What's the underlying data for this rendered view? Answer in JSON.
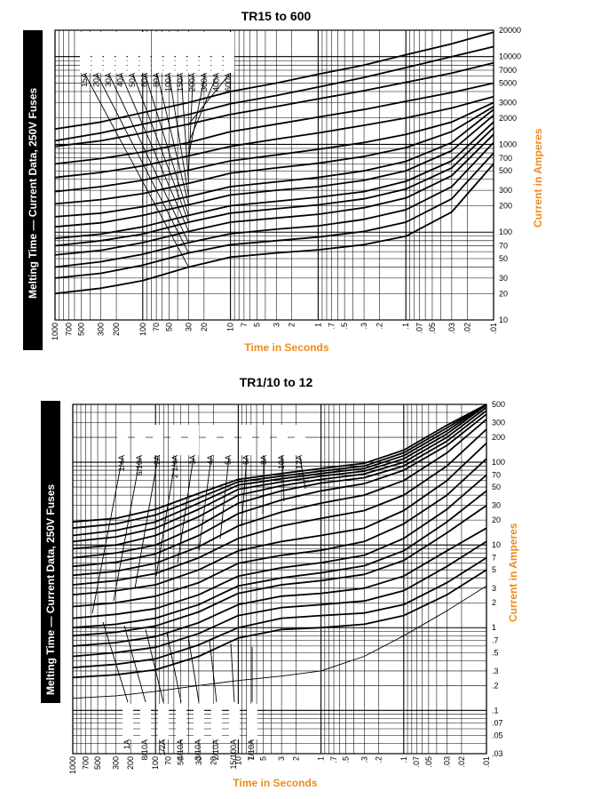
{
  "colors": {
    "axis_label": "#f08a1c",
    "side_band": "#000000",
    "curve": "#000000",
    "grid": "#000000"
  },
  "chart_data": [
    {
      "type": "line",
      "title": "TR15 to 600",
      "side_label": "Melting Time — Current Data, 250V Fuses",
      "xlabel": "Time in Seconds",
      "ylabel": "Current in Amperes",
      "x_scale": "log",
      "x_reversed": true,
      "xlim": [
        1000,
        0.01
      ],
      "y_scale": "log",
      "ylim": [
        10,
        20000
      ],
      "grid": true,
      "x_ticks": [
        "1000",
        "700",
        "500",
        "300",
        "200",
        "100",
        "70",
        "50",
        "30",
        "20",
        "10",
        "7",
        "5",
        "3",
        "2",
        "1",
        ".7",
        ".5",
        ".3",
        ".2",
        ".1",
        ".07",
        ".05",
        ".03",
        ".02",
        ".01"
      ],
      "y_ticks": [
        "20000",
        "10000",
        "7000",
        "5000",
        "3000",
        "2000",
        "1000",
        "700",
        "500",
        "300",
        "200",
        "100",
        "70",
        "50",
        "30",
        "20",
        "10"
      ],
      "series": [
        {
          "name": "15A",
          "x": [
            1000,
            300,
            100,
            30,
            10,
            3,
            1,
            0.3,
            0.1,
            0.03,
            0.01
          ],
          "y": [
            20,
            23,
            28,
            40,
            52,
            58,
            63,
            72,
            90,
            170,
            600
          ]
        },
        {
          "name": "20A",
          "x": [
            1000,
            300,
            100,
            30,
            10,
            3,
            1,
            0.3,
            0.1,
            0.03,
            0.01
          ],
          "y": [
            30,
            34,
            42,
            58,
            72,
            80,
            88,
            102,
            130,
            240,
            800
          ]
        },
        {
          "name": "30A",
          "x": [
            1000,
            300,
            100,
            30,
            10,
            3,
            1,
            0.3,
            0.1,
            0.03,
            0.01
          ],
          "y": [
            40,
            46,
            56,
            76,
            96,
            108,
            118,
            140,
            180,
            330,
            1050
          ]
        },
        {
          "name": "40A",
          "x": [
            1000,
            300,
            100,
            30,
            10,
            3,
            1,
            0.3,
            0.1,
            0.03,
            0.01
          ],
          "y": [
            55,
            62,
            76,
            102,
            130,
            145,
            160,
            190,
            245,
            440,
            1300
          ]
        },
        {
          "name": "50A",
          "x": [
            1000,
            300,
            100,
            30,
            10,
            3,
            1,
            0.3,
            0.1,
            0.03,
            0.01
          ],
          "y": [
            70,
            80,
            95,
            130,
            165,
            185,
            205,
            240,
            310,
            540,
            1550
          ]
        },
        {
          "name": "60A",
          "x": [
            1000,
            300,
            100,
            30,
            10,
            3,
            1,
            0.3,
            0.1,
            0.03,
            0.01
          ],
          "y": [
            85,
            95,
            115,
            155,
            200,
            225,
            250,
            290,
            380,
            650,
            1800
          ]
        },
        {
          "name": "80A",
          "x": [
            1000,
            300,
            100,
            30,
            10,
            3,
            1,
            0.3,
            0.1,
            0.03,
            0.01
          ],
          "y": [
            115,
            128,
            155,
            205,
            265,
            300,
            330,
            390,
            500,
            850,
            2150
          ]
        },
        {
          "name": "100A",
          "x": [
            1000,
            300,
            100,
            30,
            10,
            3,
            1,
            0.3,
            0.1,
            0.03,
            0.01
          ],
          "y": [
            150,
            165,
            195,
            255,
            330,
            375,
            420,
            500,
            640,
            1050,
            2500
          ]
        },
        {
          "name": "150A",
          "x": [
            1000,
            300,
            100,
            30,
            10,
            3,
            1,
            0.3,
            0.1,
            0.03,
            0.01
          ],
          "y": [
            210,
            235,
            275,
            360,
            470,
            540,
            610,
            730,
            920,
            1400,
            2700
          ]
        },
        {
          "name": "200A",
          "x": [
            1000,
            300,
            100,
            30,
            10,
            3,
            1,
            0.3,
            0.1,
            0.03,
            0.01
          ],
          "y": [
            290,
            330,
            390,
            510,
            650,
            760,
            880,
            1050,
            1300,
            1800,
            3000
          ]
        },
        {
          "name": "300A",
          "x": [
            1000,
            300,
            100,
            30,
            10,
            3,
            1,
            0.3,
            0.1,
            0.03,
            0.01
          ],
          "y": [
            420,
            480,
            570,
            740,
            950,
            1150,
            1350,
            1650,
            2000,
            2600,
            3500
          ]
        },
        {
          "name": "400A",
          "x": [
            1000,
            300,
            100,
            30,
            10,
            3,
            1,
            0.3,
            0.1,
            0.03,
            0.01
          ],
          "y": [
            600,
            690,
            820,
            1050,
            1400,
            1700,
            2050,
            2500,
            3100,
            3900,
            5000
          ]
        },
        {
          "name": "600A",
          "x": [
            1000,
            300,
            100,
            30,
            10,
            3,
            1,
            0.3,
            0.1,
            0.03,
            0.01
          ],
          "y": [
            950,
            1100,
            1350,
            1700,
            2200,
            2700,
            3300,
            4100,
            5100,
            6500,
            8500
          ]
        },
        {
          "name": "",
          "x": [
            1000,
            300,
            100,
            30,
            10,
            3,
            1,
            0.3,
            0.1,
            0.03,
            0.01
          ],
          "y": [
            1100,
            1350,
            1700,
            2200,
            2900,
            3600,
            4500,
            5800,
            7500,
            10000,
            13000
          ]
        },
        {
          "name": "",
          "x": [
            1000,
            300,
            100,
            30,
            10,
            3,
            1,
            0.3,
            0.1,
            0.03,
            0.01
          ],
          "y": [
            1500,
            1800,
            2300,
            3000,
            4000,
            5000,
            6300,
            8000,
            10500,
            14000,
            19000
          ]
        }
      ]
    },
    {
      "type": "line",
      "title": "TR1/10 to 12",
      "side_label": "Melting Time — Current Data, 250V Fuses",
      "xlabel": "Time in Seconds",
      "ylabel": "Current in Amperes",
      "x_scale": "log",
      "x_reversed": true,
      "xlim": [
        1000,
        0.01
      ],
      "y_scale": "log",
      "ylim": [
        0.03,
        500
      ],
      "grid": true,
      "x_ticks": [
        "1000",
        "700",
        "500",
        "300",
        "200",
        "100",
        "70",
        "50",
        "30",
        "20",
        "10",
        "7",
        "5",
        "3",
        "2",
        "1",
        ".7",
        ".5",
        ".3",
        ".2",
        ".1",
        ".07",
        ".05",
        ".03",
        ".02",
        ".01"
      ],
      "y_ticks": [
        "500",
        "300",
        "200",
        "100",
        "70",
        "50",
        "30",
        "20",
        "10",
        "7",
        "5",
        "3",
        "2",
        "1",
        ".7",
        ".5",
        ".3",
        ".2",
        ".1",
        ".07",
        ".05",
        ".03"
      ],
      "top_ratings": [
        "1/4A",
        "6/10A",
        "2A",
        "2 1/4A",
        "3A",
        "4A",
        "5A",
        "6A",
        "8A",
        "10A",
        "12A"
      ],
      "bottom_ratings": [
        "1A",
        "8/10A",
        "1/2A",
        "4/10A",
        "3/10A",
        "2/10A",
        "15/100A",
        "1/10A"
      ],
      "series": [
        {
          "name": "1/10A",
          "x": [
            1000,
            300,
            100,
            30,
            10,
            3,
            1,
            0.3,
            0.1,
            0.03,
            0.01
          ],
          "y": [
            0.14,
            0.15,
            0.17,
            0.2,
            0.23,
            0.26,
            0.3,
            0.45,
            0.8,
            1.6,
            3.2
          ]
        },
        {
          "name": "15/100A",
          "x": [
            1000,
            300,
            100,
            30,
            10,
            3,
            1,
            0.3,
            0.1,
            0.03,
            0.01
          ],
          "y": [
            0.25,
            0.27,
            0.31,
            0.45,
            0.75,
            0.95,
            1.0,
            1.1,
            1.4,
            2.5,
            5
          ]
        },
        {
          "name": "2/10A",
          "x": [
            1000,
            300,
            100,
            30,
            10,
            3,
            1,
            0.3,
            0.1,
            0.03,
            0.01
          ],
          "y": [
            0.33,
            0.36,
            0.42,
            0.62,
            1.0,
            1.3,
            1.4,
            1.5,
            1.9,
            3.5,
            7
          ]
        },
        {
          "name": "3/10A",
          "x": [
            1000,
            300,
            100,
            30,
            10,
            3,
            1,
            0.3,
            0.1,
            0.03,
            0.01
          ],
          "y": [
            0.45,
            0.5,
            0.58,
            0.85,
            1.4,
            1.75,
            1.9,
            2.1,
            2.8,
            5.5,
            11
          ]
        },
        {
          "name": "4/10A",
          "x": [
            1000,
            300,
            100,
            30,
            10,
            3,
            1,
            0.3,
            0.1,
            0.03,
            0.01
          ],
          "y": [
            0.6,
            0.66,
            0.78,
            1.15,
            1.9,
            2.4,
            2.6,
            3.0,
            4.2,
            8.5,
            16
          ]
        },
        {
          "name": "1/2A",
          "x": [
            1000,
            300,
            100,
            30,
            10,
            3,
            1,
            0.3,
            0.1,
            0.03,
            0.01
          ],
          "y": [
            0.8,
            0.88,
            1.05,
            1.55,
            2.6,
            3.3,
            3.7,
            4.4,
            6.5,
            14,
            30
          ]
        },
        {
          "name": "8/10A",
          "x": [
            1000,
            300,
            100,
            30,
            10,
            3,
            1,
            0.3,
            0.1,
            0.03,
            0.01
          ],
          "y": [
            1.0,
            1.1,
            1.3,
            1.9,
            3.2,
            4.0,
            4.6,
            5.6,
            8.5,
            19,
            45
          ]
        },
        {
          "name": "1A",
          "x": [
            1000,
            300,
            100,
            30,
            10,
            3,
            1,
            0.3,
            0.1,
            0.03,
            0.01
          ],
          "y": [
            1.3,
            1.45,
            1.7,
            2.5,
            4.2,
            5.3,
            6.1,
            7.5,
            12,
            27,
            70
          ]
        },
        {
          "name": "1/4A",
          "x": [
            1000,
            300,
            100,
            30,
            10,
            3,
            1,
            0.3,
            0.1,
            0.03,
            0.01
          ],
          "y": [
            1.8,
            2.0,
            2.4,
            3.5,
            6.0,
            7.5,
            8.6,
            11,
            18,
            40,
            110
          ]
        },
        {
          "name": "6/10A",
          "x": [
            1000,
            300,
            100,
            30,
            10,
            3,
            1,
            0.3,
            0.1,
            0.03,
            0.01
          ],
          "y": [
            2.5,
            2.8,
            3.3,
            5.0,
            8.5,
            11,
            13,
            16,
            26,
            60,
            170
          ]
        },
        {
          "name": "2A",
          "x": [
            1000,
            300,
            100,
            30,
            10,
            3,
            1,
            0.3,
            0.1,
            0.03,
            0.01
          ],
          "y": [
            3.3,
            3.7,
            4.5,
            7.0,
            12,
            17,
            21,
            26,
            40,
            90,
            250
          ]
        },
        {
          "name": "2 1/4A",
          "x": [
            1000,
            300,
            100,
            30,
            10,
            3,
            1,
            0.3,
            0.1,
            0.03,
            0.01
          ],
          "y": [
            4.3,
            4.8,
            6.0,
            9.5,
            17,
            25,
            32,
            40,
            60,
            130,
            330
          ]
        },
        {
          "name": "3A",
          "x": [
            1000,
            300,
            100,
            30,
            10,
            3,
            1,
            0.3,
            0.1,
            0.03,
            0.01
          ],
          "y": [
            5.5,
            6.2,
            7.8,
            13,
            24,
            35,
            45,
            55,
            80,
            160,
            380
          ]
        },
        {
          "name": "4A",
          "x": [
            1000,
            300,
            100,
            30,
            10,
            3,
            1,
            0.3,
            0.1,
            0.03,
            0.01
          ],
          "y": [
            7.0,
            8.0,
            10,
            17,
            32,
            45,
            56,
            65,
            90,
            180,
            420
          ]
        },
        {
          "name": "5A",
          "x": [
            1000,
            300,
            100,
            30,
            10,
            3,
            1,
            0.3,
            0.1,
            0.03,
            0.01
          ],
          "y": [
            9.0,
            10,
            13,
            22,
            40,
            52,
            62,
            72,
            100,
            200,
            460
          ]
        },
        {
          "name": "6A",
          "x": [
            1000,
            300,
            100,
            30,
            10,
            3,
            1,
            0.3,
            0.1,
            0.03,
            0.01
          ],
          "y": [
            11,
            12.5,
            16,
            27,
            47,
            58,
            68,
            78,
            110,
            220,
            490
          ]
        },
        {
          "name": "8A",
          "x": [
            1000,
            300,
            100,
            30,
            10,
            3,
            1,
            0.3,
            0.1,
            0.03,
            0.01
          ],
          "y": [
            13,
            15,
            19,
            32,
            53,
            63,
            73,
            84,
            120,
            240,
            500
          ]
        },
        {
          "name": "10A",
          "x": [
            1000,
            300,
            100,
            30,
            10,
            3,
            1,
            0.3,
            0.1,
            0.03,
            0.01
          ],
          "y": [
            16,
            18,
            23,
            37,
            58,
            68,
            78,
            90,
            130,
            260,
            500
          ]
        },
        {
          "name": "12A",
          "x": [
            1000,
            300,
            100,
            30,
            10,
            3,
            1,
            0.3,
            0.1,
            0.03,
            0.01
          ],
          "y": [
            19,
            21,
            27,
            42,
            62,
            73,
            84,
            97,
            140,
            280,
            500
          ]
        }
      ]
    }
  ]
}
